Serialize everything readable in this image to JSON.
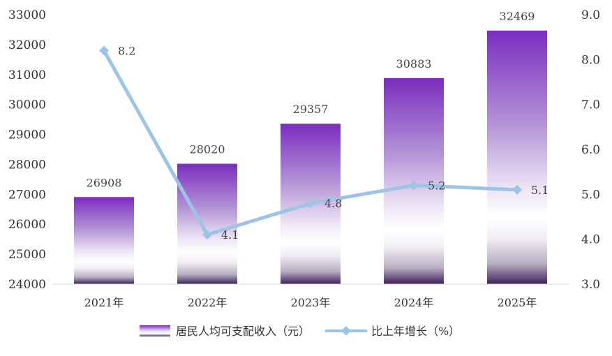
{
  "chart_data": {
    "type": "bar",
    "categories": [
      "2021年",
      "2022年",
      "2023年",
      "2024年",
      "2025年"
    ],
    "series": [
      {
        "name": "居民人均可支配收入（元）",
        "type": "bar",
        "axis": "left",
        "values": [
          26908,
          28020,
          29357,
          30883,
          32469
        ],
        "labels": [
          "26908",
          "28020",
          "29357",
          "30883",
          "32469"
        ],
        "color": "#7B2CBF"
      },
      {
        "name": "比上年增长（%）",
        "type": "line",
        "axis": "right",
        "values": [
          8.2,
          4.1,
          4.8,
          5.2,
          5.1
        ],
        "labels": [
          "8.2",
          "4.1",
          "4.8",
          "5.2",
          "5.1"
        ],
        "color": "#9DC3E6"
      }
    ],
    "ylim": [
      24000,
      33000
    ],
    "y_ticks": [
      "24000",
      "25000",
      "26000",
      "27000",
      "28000",
      "29000",
      "30000",
      "31000",
      "32000",
      "33000"
    ],
    "y2lim": [
      3.0,
      9.0
    ],
    "y2_ticks": [
      "3.0",
      "4.0",
      "5.0",
      "6.0",
      "7.0",
      "8.0",
      "9.0"
    ],
    "grid": false,
    "legend_position": "bottom"
  }
}
